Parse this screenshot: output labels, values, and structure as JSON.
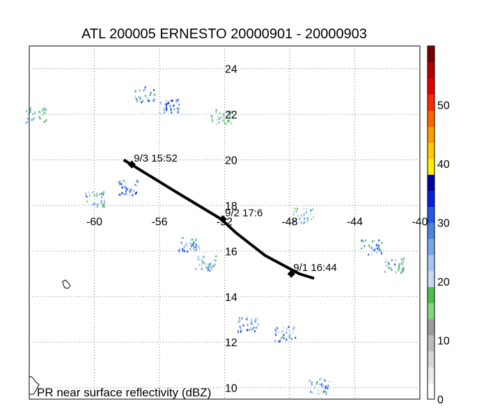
{
  "title": "ATL 200005 ERNESTO 20000901 - 20000903",
  "caption": "PR near surface reflectivity (dBZ)",
  "chart_data": {
    "type": "map",
    "lon_range": [
      -64,
      -40
    ],
    "lat_range": [
      9.5,
      25
    ],
    "lon_ticks": [
      -60,
      -56,
      -52,
      -48,
      -44,
      -40
    ],
    "lat_ticks": [
      24,
      22,
      20,
      18,
      16,
      14,
      12,
      10
    ],
    "track": {
      "name": "ERNESTO",
      "points": [
        {
          "lon": -46.5,
          "lat": 14.8
        },
        {
          "lon": -47.4,
          "lat": 15.0
        },
        {
          "lon": -49.5,
          "lat": 15.8
        },
        {
          "lon": -51.3,
          "lat": 16.8
        },
        {
          "lon": -52.2,
          "lat": 17.4
        },
        {
          "lon": -55.0,
          "lat": 18.6
        },
        {
          "lon": -57.5,
          "lat": 19.7
        },
        {
          "lon": -58.2,
          "lat": 20.0
        }
      ],
      "markers": [
        {
          "label": "9/1 16:44",
          "lon": -47.9,
          "lat": 15.0
        },
        {
          "label": "9/2 17:6",
          "lon": -52.1,
          "lat": 17.4
        },
        {
          "label": "9/3 15:52",
          "lon": -57.7,
          "lat": 19.8
        }
      ]
    },
    "colorbar": {
      "label": "dBZ",
      "range": [
        0,
        60
      ],
      "ticks": [
        0,
        10,
        20,
        30,
        40,
        50
      ],
      "colors": [
        "#ffffff",
        "#ececec",
        "#d6d6d6",
        "#bcbcbc",
        "#9c9c9c",
        "#82d882",
        "#4fbf4f",
        "#c6d9f6",
        "#a4c6f1",
        "#7aa8ea",
        "#4d86e0",
        "#2459e8",
        "#0a1fd6",
        "#0000a6",
        "#fff000",
        "#ffc800",
        "#ff9a00",
        "#ff6400",
        "#ff2800",
        "#e60000",
        "#b40000",
        "#7a0000"
      ]
    },
    "echo_clusters": [
      {
        "lon": -55.4,
        "lat": 22.4,
        "intensity_dbz": 30
      },
      {
        "lon": -56.9,
        "lat": 22.9,
        "intensity_dbz": 28
      },
      {
        "lon": -58.0,
        "lat": 18.8,
        "intensity_dbz": 30
      },
      {
        "lon": -60.0,
        "lat": 18.3,
        "intensity_dbz": 26
      },
      {
        "lon": -54.2,
        "lat": 16.3,
        "intensity_dbz": 30
      },
      {
        "lon": -53.2,
        "lat": 15.5,
        "intensity_dbz": 27
      },
      {
        "lon": -50.6,
        "lat": 12.8,
        "intensity_dbz": 30
      },
      {
        "lon": -48.3,
        "lat": 12.4,
        "intensity_dbz": 28
      },
      {
        "lon": -43.0,
        "lat": 16.2,
        "intensity_dbz": 30
      },
      {
        "lon": -41.6,
        "lat": 15.4,
        "intensity_dbz": 27
      },
      {
        "lon": -47.2,
        "lat": 17.6,
        "intensity_dbz": 24
      },
      {
        "lon": -46.2,
        "lat": 10.1,
        "intensity_dbz": 29
      },
      {
        "lon": -52.2,
        "lat": 21.9,
        "intensity_dbz": 22
      },
      {
        "lon": -63.6,
        "lat": 22.0,
        "intensity_dbz": 24
      }
    ]
  }
}
